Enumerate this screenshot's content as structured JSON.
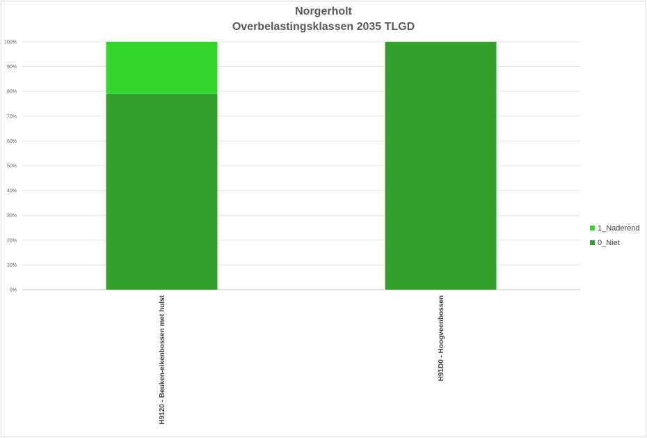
{
  "chart_data": {
    "type": "bar",
    "stacked": true,
    "title": "Norgerholt",
    "subtitle": "Overbelastingsklassen 2035 TLGD",
    "categories": [
      "H9120 - Beuken-eikenbossen met hulst",
      "H91D0 - Hoogveenbossen"
    ],
    "series": [
      {
        "name": "0_Niet",
        "values": [
          79,
          100
        ],
        "color": "#33A02C"
      },
      {
        "name": "1_Naderend",
        "values": [
          21,
          0
        ],
        "color": "#33D62A"
      }
    ],
    "yticks": [
      "0%",
      "10%",
      "20%",
      "30%",
      "40%",
      "50%",
      "60%",
      "70%",
      "80%",
      "90%",
      "100%"
    ],
    "ylim": [
      0,
      100
    ],
    "grid": true,
    "legend_position": "right",
    "legend_order": [
      "1_Naderend",
      "0_Niet"
    ]
  }
}
